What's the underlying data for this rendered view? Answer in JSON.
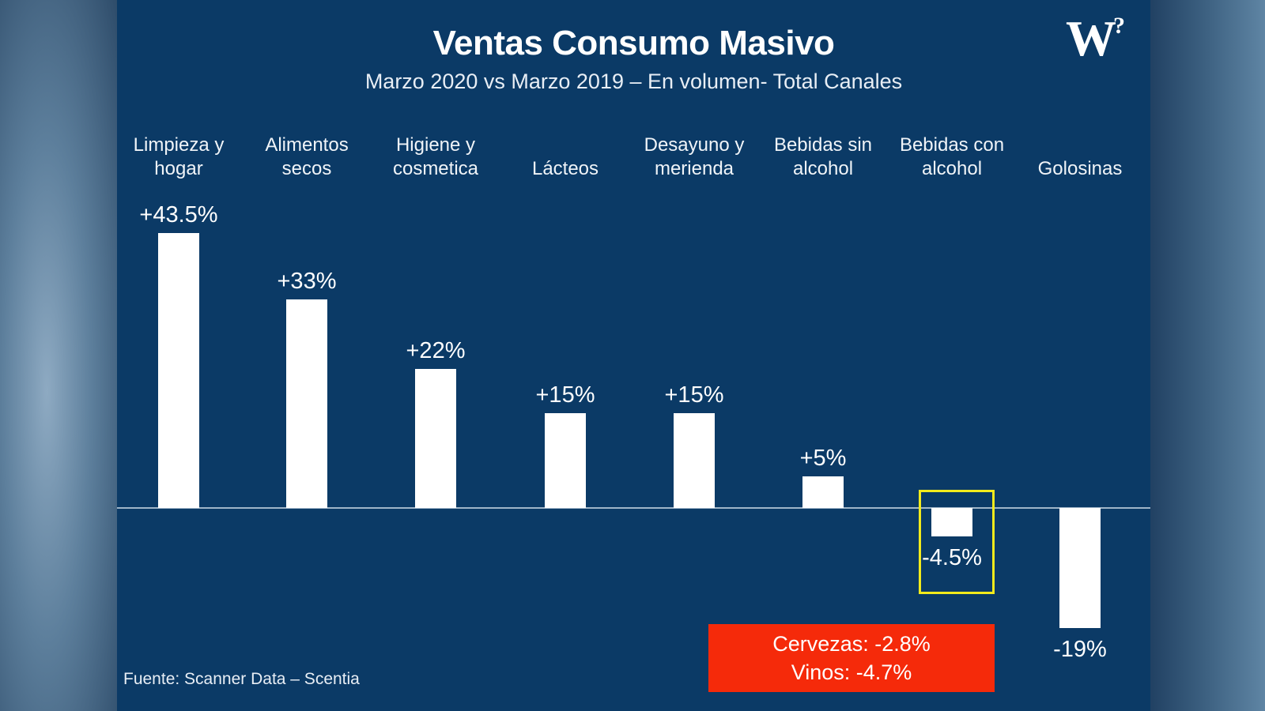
{
  "chart_data": {
    "type": "bar",
    "title": "Ventas Consumo Masivo",
    "subtitle": "Marzo 2020 vs Marzo 2019 – En volumen- Total Canales",
    "categories": [
      [
        "Limpieza y",
        "hogar"
      ],
      [
        "Alimentos",
        "secos"
      ],
      [
        "Higiene y",
        "cosmetica"
      ],
      [
        "Lácteos"
      ],
      [
        "Desayuno y",
        "merienda"
      ],
      [
        "Bebidas sin",
        "alcohol"
      ],
      [
        "Bebidas con",
        "alcohol"
      ],
      [
        "Golosinas"
      ]
    ],
    "values": [
      43.5,
      33,
      22,
      15,
      15,
      5,
      -4.5,
      -19
    ],
    "value_labels": [
      "+43.5%",
      "+33%",
      "+22%",
      "+15%",
      "+15%",
      "+5%",
      "-4.5%",
      "-19%"
    ],
    "unit": "%",
    "highlighted_category_index": 6,
    "xlabel": "",
    "ylabel": "",
    "ylim": [
      -22,
      45
    ],
    "grid": false
  },
  "logo_text": "W",
  "logo_mark": "?",
  "source": "Fuente: Scanner Data – Scentia",
  "callout": {
    "line1": "Cervezas: -2.8%",
    "line2": "Vinos: -4.7%"
  },
  "colors": {
    "background": "#0b3a66",
    "bars": "#ffffff",
    "callout": "#f52a0a",
    "highlight": "#f2ea1c"
  }
}
